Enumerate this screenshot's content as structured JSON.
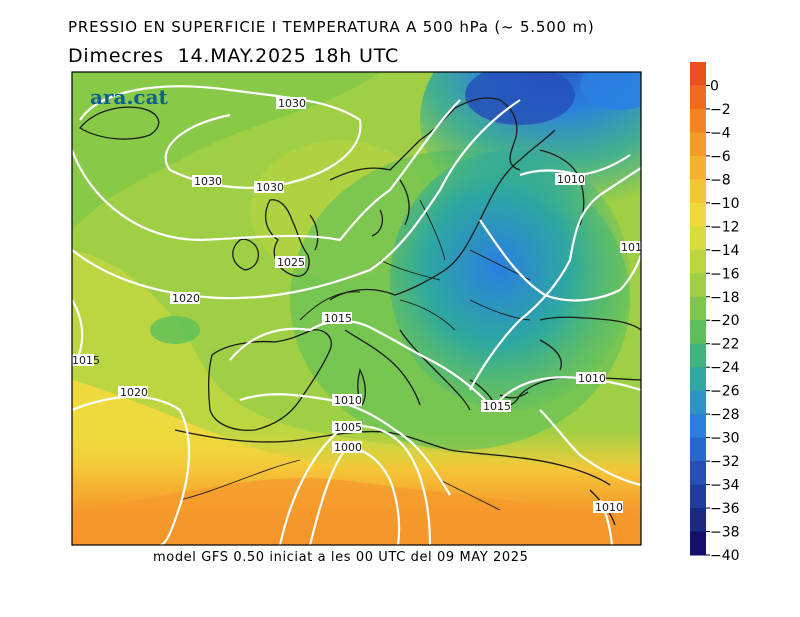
{
  "title_line1": "PRESSIO EN SUPERFICIE I TEMPERATURA A 500 hPa (~ 5.500 m)",
  "title_line2": "Dimecres  14.MAY.2025 18h UTC",
  "footer": "model GFS 0.50 iniciat a les 00 UTC del 09 MAY 2025",
  "logo": "ara.cat",
  "colorbar": {
    "ticks": [
      "0",
      "−2",
      "−4",
      "−6",
      "−8",
      "−10",
      "−12",
      "−14",
      "−16",
      "−18",
      "−20",
      "−22",
      "−24",
      "−26",
      "−28",
      "−30",
      "−32",
      "−34",
      "−36",
      "−38",
      "−40"
    ],
    "colors": [
      "#e8501e",
      "#ee6b1e",
      "#f28424",
      "#f59a2c",
      "#f6b032",
      "#f5c538",
      "#eed93e",
      "#d8dc40",
      "#bcd642",
      "#9fcf44",
      "#7fc74a",
      "#5cbf5a",
      "#3fb47c",
      "#2ea8a0",
      "#2c93c4",
      "#2a7fe0",
      "#2866d0",
      "#2650b8",
      "#223ca0",
      "#1c2a86",
      "#150f6c"
    ]
  },
  "isobar_labels": [
    "1030",
    "1030",
    "1030",
    "1025",
    "1020",
    "1015",
    "1015",
    "1020",
    "1010",
    "1005",
    "1000",
    "1010",
    "1010",
    "1015",
    "1010",
    "101"
  ]
}
